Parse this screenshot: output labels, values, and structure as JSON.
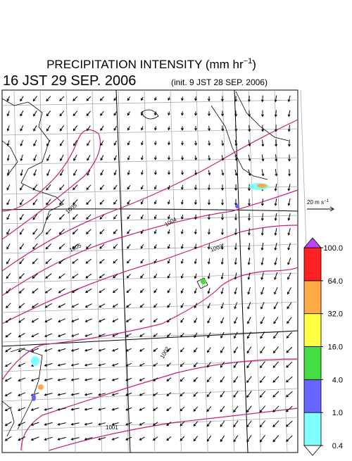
{
  "header": {
    "title": "PRECIPITATION INTENSITY (mm hr",
    "title_exponent": "−1",
    "title_close": ")",
    "valid_time": "16 JST 29 SEP. 2006",
    "init_time": "(init. 9 JST 28 SEP. 2006)"
  },
  "isobar_labels": [
    "1005",
    "1004",
    "1005",
    "1003",
    "1002",
    "1001"
  ],
  "reference_vector": {
    "label": "20 m s",
    "exponent": "−1"
  },
  "colorbar": {
    "levels": [
      {
        "value": 0.4,
        "label": "0.4"
      },
      {
        "value": 1,
        "label": "1.0"
      },
      {
        "value": 4,
        "label": "4.0"
      },
      {
        "value": 16,
        "label": "16.0"
      },
      {
        "value": 32,
        "label": "32.0"
      },
      {
        "value": 64,
        "label": "64.0"
      },
      {
        "value": 100,
        "label": "100.0"
      }
    ],
    "colors": [
      "#80ffff",
      "#6666ff",
      "#44dd44",
      "#ffff44",
      "#ffaa44",
      "#ff2222"
    ],
    "over_color": "#bb44ff",
    "under_color": "#ffffff"
  }
}
